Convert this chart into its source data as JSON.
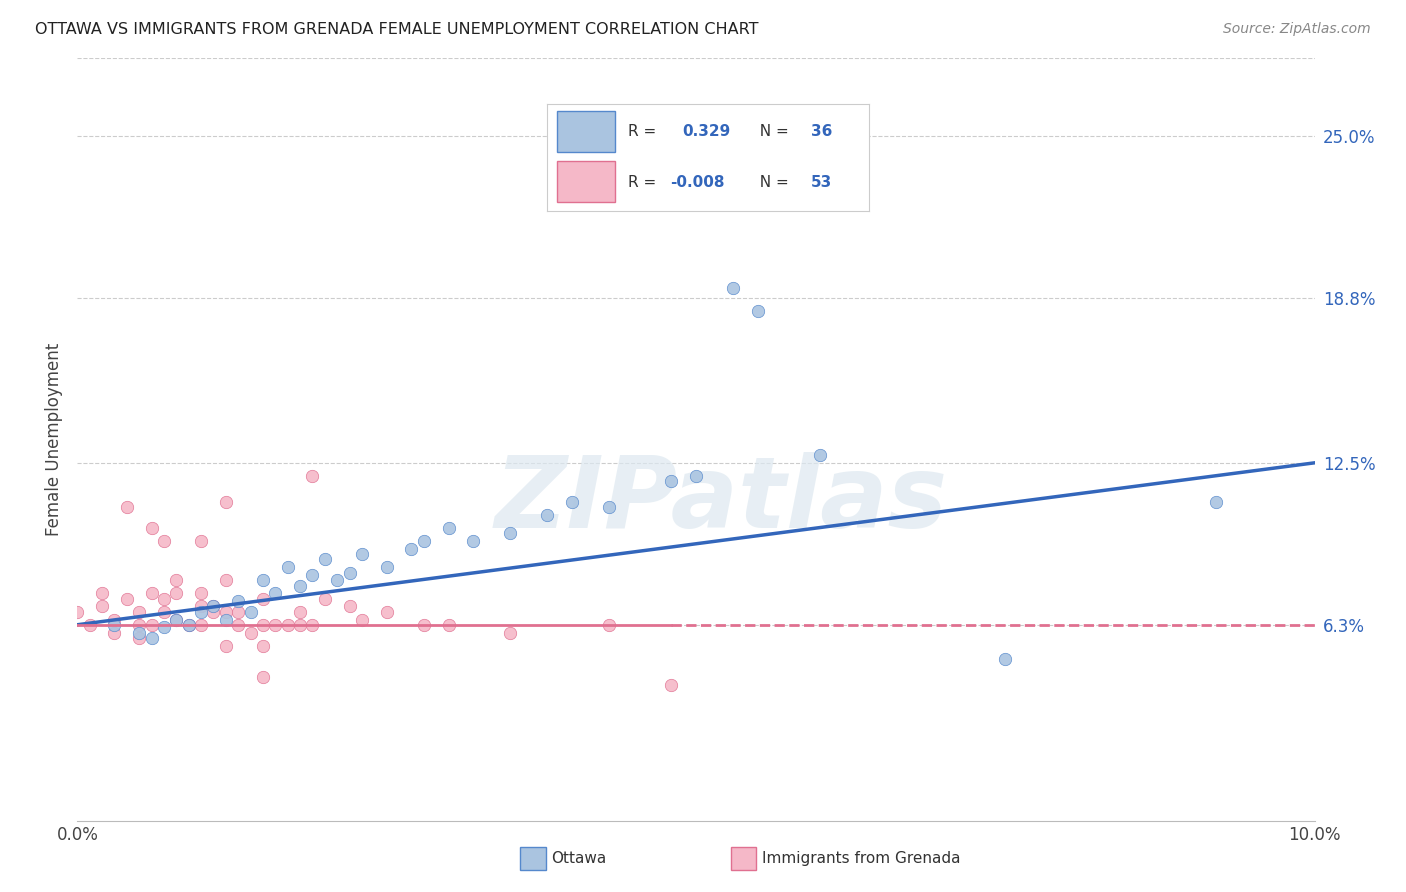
{
  "title": "OTTAWA VS IMMIGRANTS FROM GRENADA FEMALE UNEMPLOYMENT CORRELATION CHART",
  "source": "Source: ZipAtlas.com",
  "ylabel": "Female Unemployment",
  "xlim": [
    0.0,
    0.1
  ],
  "ylim": [
    0.0,
    0.28
  ],
  "ytick_labels": [
    "6.3%",
    "12.5%",
    "18.8%",
    "25.0%"
  ],
  "ytick_values": [
    0.063,
    0.125,
    0.188,
    0.25
  ],
  "background_color": "#ffffff",
  "watermark_text": "ZIPatlas",
  "ottawa_color": "#aac4e0",
  "ottawa_edge_color": "#5588cc",
  "grenada_color": "#f5b8c8",
  "grenada_edge_color": "#e07090",
  "ottawa_line_color": "#3366bb",
  "grenada_line_color": "#e07090",
  "ottawa_scatter": [
    [
      0.003,
      0.063
    ],
    [
      0.005,
      0.06
    ],
    [
      0.006,
      0.058
    ],
    [
      0.007,
      0.062
    ],
    [
      0.008,
      0.065
    ],
    [
      0.009,
      0.063
    ],
    [
      0.01,
      0.068
    ],
    [
      0.011,
      0.07
    ],
    [
      0.012,
      0.065
    ],
    [
      0.013,
      0.072
    ],
    [
      0.014,
      0.068
    ],
    [
      0.015,
      0.08
    ],
    [
      0.016,
      0.075
    ],
    [
      0.017,
      0.085
    ],
    [
      0.018,
      0.078
    ],
    [
      0.019,
      0.082
    ],
    [
      0.02,
      0.088
    ],
    [
      0.021,
      0.08
    ],
    [
      0.022,
      0.083
    ],
    [
      0.023,
      0.09
    ],
    [
      0.025,
      0.085
    ],
    [
      0.027,
      0.092
    ],
    [
      0.028,
      0.095
    ],
    [
      0.03,
      0.1
    ],
    [
      0.032,
      0.095
    ],
    [
      0.035,
      0.098
    ],
    [
      0.038,
      0.105
    ],
    [
      0.04,
      0.11
    ],
    [
      0.043,
      0.108
    ],
    [
      0.048,
      0.118
    ],
    [
      0.05,
      0.12
    ],
    [
      0.053,
      0.192
    ],
    [
      0.055,
      0.183
    ],
    [
      0.06,
      0.128
    ],
    [
      0.075,
      0.05
    ],
    [
      0.092,
      0.11
    ]
  ],
  "grenada_scatter": [
    [
      0.0,
      0.068
    ],
    [
      0.001,
      0.063
    ],
    [
      0.002,
      0.07
    ],
    [
      0.002,
      0.075
    ],
    [
      0.003,
      0.06
    ],
    [
      0.003,
      0.065
    ],
    [
      0.004,
      0.108
    ],
    [
      0.004,
      0.073
    ],
    [
      0.005,
      0.063
    ],
    [
      0.005,
      0.068
    ],
    [
      0.005,
      0.058
    ],
    [
      0.006,
      0.1
    ],
    [
      0.006,
      0.075
    ],
    [
      0.006,
      0.063
    ],
    [
      0.007,
      0.095
    ],
    [
      0.007,
      0.073
    ],
    [
      0.007,
      0.068
    ],
    [
      0.008,
      0.08
    ],
    [
      0.008,
      0.075
    ],
    [
      0.008,
      0.065
    ],
    [
      0.009,
      0.063
    ],
    [
      0.01,
      0.095
    ],
    [
      0.01,
      0.075
    ],
    [
      0.01,
      0.07
    ],
    [
      0.01,
      0.063
    ],
    [
      0.011,
      0.07
    ],
    [
      0.011,
      0.068
    ],
    [
      0.012,
      0.11
    ],
    [
      0.012,
      0.08
    ],
    [
      0.012,
      0.068
    ],
    [
      0.012,
      0.055
    ],
    [
      0.013,
      0.063
    ],
    [
      0.013,
      0.068
    ],
    [
      0.014,
      0.06
    ],
    [
      0.015,
      0.073
    ],
    [
      0.015,
      0.063
    ],
    [
      0.015,
      0.055
    ],
    [
      0.015,
      0.043
    ],
    [
      0.016,
      0.063
    ],
    [
      0.017,
      0.063
    ],
    [
      0.018,
      0.068
    ],
    [
      0.018,
      0.063
    ],
    [
      0.019,
      0.12
    ],
    [
      0.019,
      0.063
    ],
    [
      0.02,
      0.073
    ],
    [
      0.022,
      0.07
    ],
    [
      0.023,
      0.065
    ],
    [
      0.025,
      0.068
    ],
    [
      0.028,
      0.063
    ],
    [
      0.03,
      0.063
    ],
    [
      0.035,
      0.06
    ],
    [
      0.043,
      0.063
    ],
    [
      0.048,
      0.04
    ]
  ],
  "ottawa_trend": [
    0.0,
    0.1,
    0.063,
    0.125
  ],
  "grenada_trend_solid": [
    0.0,
    0.048,
    0.063,
    0.063
  ],
  "grenada_trend_dashed": [
    0.048,
    0.1,
    0.063,
    0.063
  ]
}
